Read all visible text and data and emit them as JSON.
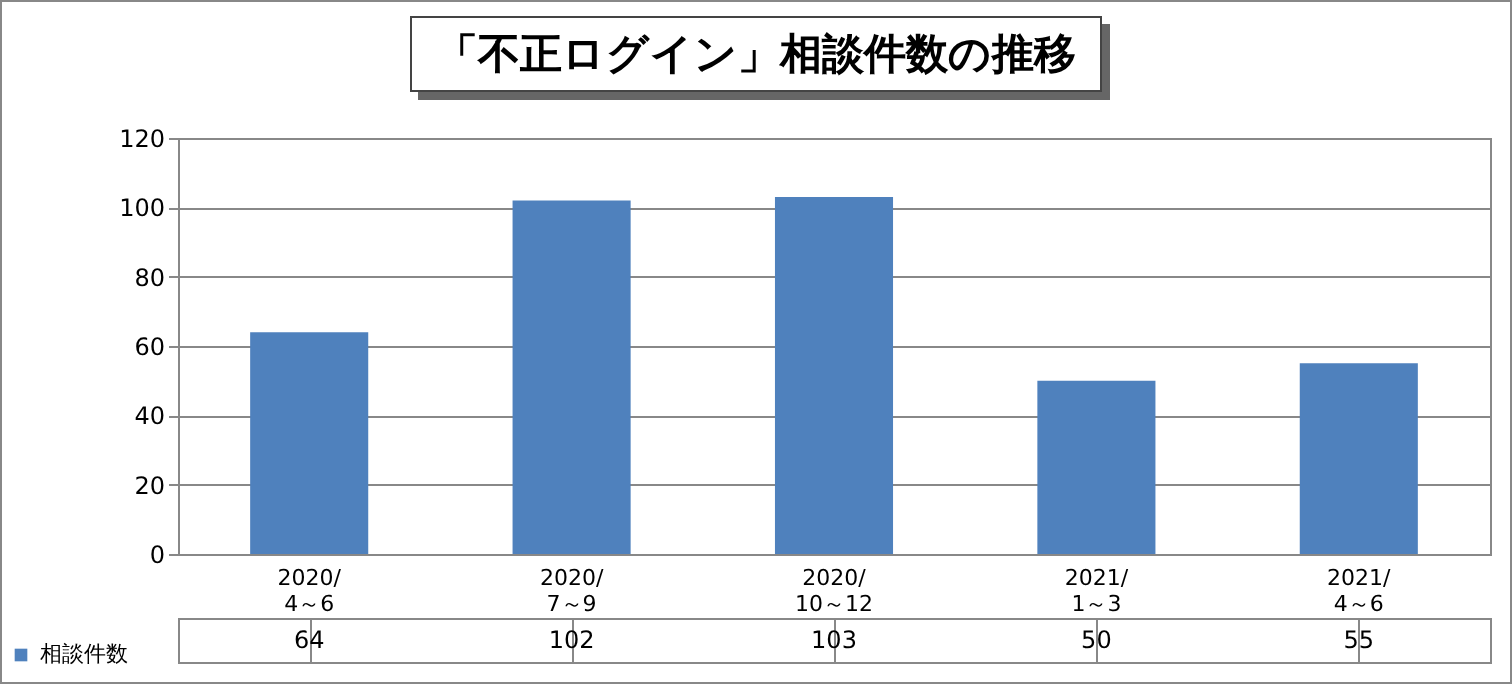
{
  "chart_data": {
    "type": "bar",
    "title": "「不正ログイン」相談件数の推移",
    "categories": [
      "2020/4～6",
      "2020/7～9",
      "2020/10～12",
      "2021/1～3",
      "2021/4～6"
    ],
    "series": [
      {
        "name": "相談件数",
        "color": "#4f81bd",
        "values": [
          64,
          102,
          103,
          50,
          55
        ]
      }
    ],
    "ylim": [
      0,
      120
    ],
    "yticks": [
      0,
      20,
      40,
      60,
      80,
      100,
      120
    ],
    "grid": "y",
    "data_labels": true,
    "legend": "bottom left"
  }
}
